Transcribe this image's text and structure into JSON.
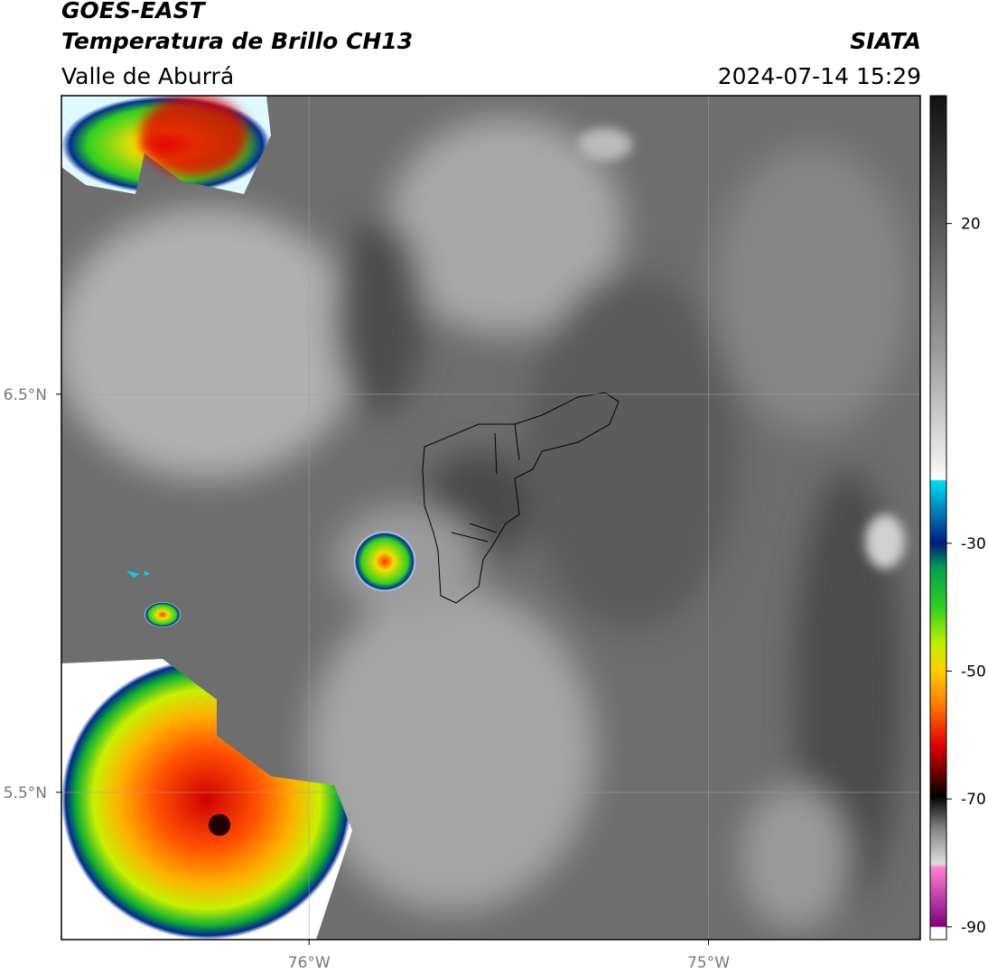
{
  "header": {
    "title": "GOES-EAST",
    "subtitle": "Temperatura de Brillo CH13",
    "source": "SIATA",
    "region": "Valle de Aburrá",
    "timestamp": "2024-07-14 15:29"
  },
  "map": {
    "xlim": [
      -76.62,
      -74.47
    ],
    "ylim": [
      5.13,
      7.25
    ],
    "xticks": [
      {
        "value": -76,
        "label": "76°W"
      },
      {
        "value": -75,
        "label": "75°W"
      }
    ],
    "yticks": [
      {
        "value": 6.5,
        "label": "6.5°N"
      },
      {
        "value": 5.5,
        "label": "5.5°N"
      }
    ],
    "grid": true
  },
  "colorbar": {
    "lim": [
      -92,
      40
    ],
    "ticks": [
      20,
      -30,
      -50,
      -70,
      -90
    ]
  }
}
